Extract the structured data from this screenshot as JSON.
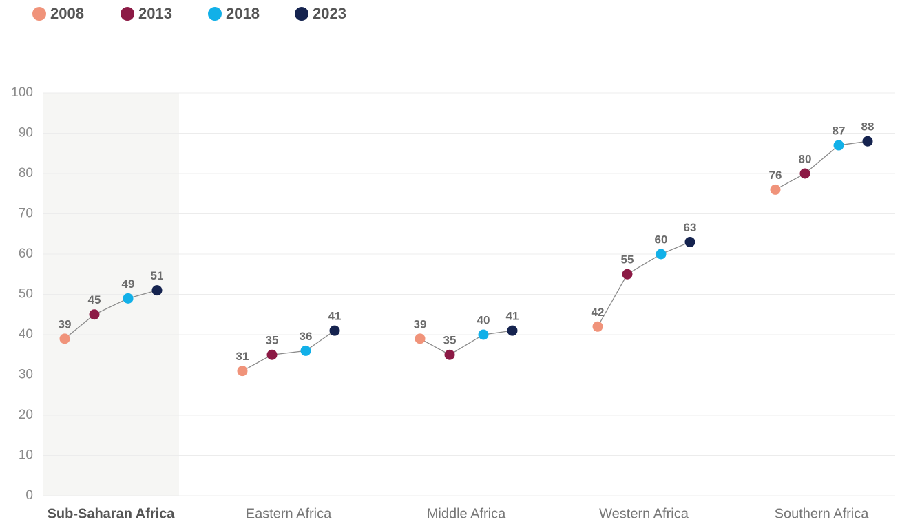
{
  "chart_data": {
    "type": "dot-group",
    "categories": [
      "Sub-Saharan Africa",
      "Eastern Africa",
      "Middle Africa",
      "Western Africa",
      "Southern Africa"
    ],
    "series": [
      {
        "name": "2008",
        "color": "#f0937a",
        "values": [
          39,
          31,
          39,
          42,
          76
        ]
      },
      {
        "name": "2013",
        "color": "#8c1a45",
        "values": [
          45,
          35,
          35,
          55,
          80
        ]
      },
      {
        "name": "2018",
        "color": "#12b0e8",
        "values": [
          49,
          36,
          40,
          60,
          87
        ]
      },
      {
        "name": "2023",
        "color": "#15234f",
        "values": [
          51,
          41,
          41,
          63,
          88
        ]
      }
    ],
    "ylim": [
      0,
      100
    ],
    "yticks": [
      0,
      10,
      20,
      30,
      40,
      50,
      60,
      70,
      80,
      90,
      100
    ],
    "grid": true,
    "legend": "top-left",
    "highlight_index": 0
  }
}
